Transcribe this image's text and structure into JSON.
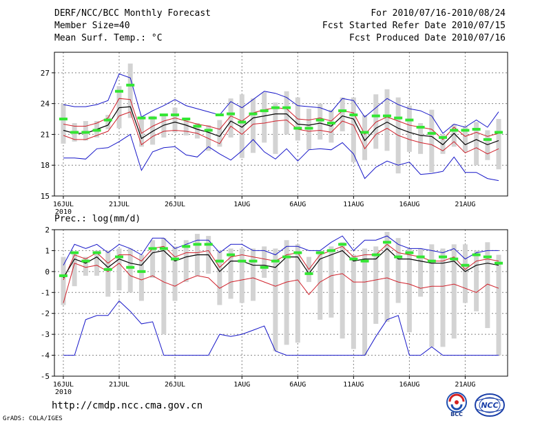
{
  "header": {
    "title": "DERF/NCC/BCC Monthly Forecast",
    "member_size": "Member Size=40",
    "variable_top": "Mean Surf. Temp.: °C",
    "forecast_period": "For 2010/07/16-2010/08/24",
    "start_date": "Fcst Started Refer Date 2010/07/15",
    "produced_date": "Fcst Produced Date 2010/07/16"
  },
  "footer": {
    "url": "http://cmdp.ncc.cma.gov.cn",
    "credit": "GrADS: COLA/IGES",
    "logo_bcc": "BCC",
    "logo_ncc": "NCC"
  },
  "colors": {
    "range": "#1515c8",
    "band": "#d0202a",
    "mean": "#000000",
    "bar": "#d3d3d3",
    "obs": "#33e633",
    "grid": "#808080"
  },
  "chart_data": [
    {
      "type": "line",
      "title": "Mean Surf. Temp.: °C",
      "x_tick_labels": [
        "16JUL\n2010",
        "21JUL",
        "26JUL",
        "1AUG",
        "6AUG",
        "11AUG",
        "16AUG",
        "21AUG"
      ],
      "x_tick_days": [
        0,
        5,
        10,
        16,
        21,
        26,
        31,
        36
      ],
      "xlim": [
        -0.8,
        39.8
      ],
      "ylim": [
        15,
        29
      ],
      "y_ticks": [
        15,
        18,
        21,
        24,
        27
      ],
      "days": [
        0,
        1,
        2,
        3,
        4,
        5,
        6,
        7,
        8,
        9,
        10,
        11,
        12,
        13,
        14,
        15,
        16,
        17,
        18,
        19,
        20,
        21,
        22,
        23,
        24,
        25,
        26,
        27,
        28,
        29,
        30,
        31,
        32,
        33,
        34,
        35,
        36,
        37,
        38,
        39
      ],
      "series": [
        {
          "name": "max",
          "values": [
            23.9,
            23.7,
            23.7,
            23.9,
            24.3,
            26.9,
            26.5,
            22.7,
            23.3,
            23.8,
            24.4,
            23.8,
            23.5,
            23.2,
            22.9,
            24.2,
            23.6,
            24.4,
            25.2,
            25.0,
            24.6,
            23.8,
            23.7,
            23.6,
            23.2,
            24.5,
            24.3,
            22.7,
            23.6,
            24.5,
            23.9,
            23.5,
            23.3,
            22.8,
            21.1,
            22.0,
            21.7,
            22.4,
            21.7,
            23.2
          ]
        },
        {
          "name": "upper",
          "values": [
            22.0,
            21.8,
            21.8,
            22.1,
            22.6,
            24.5,
            24.4,
            21.1,
            21.8,
            22.3,
            22.6,
            22.3,
            22.0,
            21.8,
            21.5,
            22.8,
            22.3,
            23.1,
            23.4,
            23.6,
            23.5,
            22.5,
            22.4,
            22.6,
            22.3,
            23.3,
            23.1,
            21.0,
            22.2,
            22.7,
            22.3,
            21.9,
            21.7,
            21.5,
            20.5,
            21.7,
            20.8,
            21.2,
            20.8,
            21.1
          ]
        },
        {
          "name": "mean",
          "values": [
            21.4,
            21.1,
            21.1,
            21.5,
            21.9,
            23.6,
            23.7,
            20.6,
            21.3,
            21.9,
            22.2,
            21.9,
            21.5,
            21.2,
            20.8,
            22.3,
            21.7,
            22.6,
            22.8,
            23.0,
            23.0,
            22.0,
            21.9,
            22.1,
            21.8,
            22.8,
            22.5,
            20.4,
            21.6,
            22.2,
            21.6,
            21.2,
            20.9,
            20.8,
            20.0,
            21.1,
            20.0,
            20.5,
            20.0,
            20.4
          ]
        },
        {
          "name": "lower",
          "values": [
            20.9,
            20.5,
            20.5,
            20.9,
            21.3,
            22.8,
            23.2,
            20.0,
            20.8,
            21.3,
            21.4,
            21.3,
            21.1,
            20.6,
            20.1,
            21.8,
            21.0,
            22.0,
            22.1,
            22.3,
            22.4,
            21.5,
            21.3,
            21.4,
            21.2,
            22.3,
            21.9,
            19.6,
            21.0,
            21.6,
            20.9,
            20.5,
            20.2,
            20.0,
            19.4,
            20.3,
            19.2,
            19.7,
            19.1,
            19.6
          ]
        },
        {
          "name": "min",
          "values": [
            18.7,
            18.7,
            18.6,
            19.6,
            19.7,
            20.3,
            21.0,
            17.5,
            19.3,
            19.7,
            19.8,
            19.0,
            18.8,
            19.8,
            19.1,
            18.5,
            19.4,
            20.5,
            19.3,
            18.6,
            19.6,
            18.4,
            19.5,
            19.6,
            19.5,
            20.2,
            19.1,
            16.7,
            17.8,
            18.4,
            18.0,
            18.3,
            17.1,
            17.2,
            17.4,
            18.8,
            17.3,
            17.3,
            16.7,
            16.5
          ]
        }
      ],
      "bars": {
        "low": [
          20.1,
          20.3,
          20.4,
          20.7,
          21.5,
          21.6,
          22.6,
          19.8,
          20.0,
          20.7,
          21.2,
          20.9,
          20.6,
          19.4,
          19.8,
          20.7,
          18.7,
          19.2,
          20.2,
          19.1,
          21.0,
          20.4,
          19.5,
          20.5,
          20.2,
          21.3,
          18.3,
          18.5,
          19.6,
          19.4,
          17.2,
          19.3,
          19.1,
          17.3,
          19.1,
          19.8,
          19.3,
          18.0,
          18.5,
          17.6
        ],
        "high": [
          24.0,
          22.1,
          22.3,
          22.3,
          22.9,
          25.7,
          27.9,
          22.6,
          22.8,
          23.0,
          23.6,
          22.6,
          22.1,
          21.9,
          22.4,
          24.5,
          24.9,
          24.5,
          25.1,
          24.1,
          25.2,
          24.6,
          23.5,
          24.0,
          23.4,
          24.6,
          24.6,
          22.9,
          24.9,
          25.4,
          24.6,
          23.8,
          22.1,
          23.4,
          21.0,
          22.0,
          21.8,
          22.2,
          21.4,
          22.5
        ]
      },
      "observed": [
        22.5,
        21.2,
        21.2,
        21.4,
        22.4,
        25.2,
        25.8,
        22.6,
        22.6,
        22.9,
        22.9,
        22.5,
        21.8,
        21.4,
        22.9,
        23.0,
        22.2,
        23.0,
        23.3,
        23.6,
        23.6,
        21.6,
        21.6,
        22.4,
        22.1,
        23.3,
        22.9,
        21.2,
        22.8,
        22.8,
        22.6,
        22.4,
        21.7,
        21.1,
        20.7,
        21.4,
        21.4,
        21.5,
        20.5,
        21.2
      ]
    },
    {
      "type": "line",
      "title": "Prec.: log(mm/d)",
      "x_tick_labels": [
        "16JUL\n2010",
        "21JUL",
        "26JUL",
        "1AUG",
        "6AUG",
        "11AUG",
        "16AUG",
        "21AUG"
      ],
      "x_tick_days": [
        0,
        5,
        10,
        16,
        21,
        26,
        31,
        36
      ],
      "xlim": [
        -0.8,
        39.8
      ],
      "ylim": [
        -5,
        2
      ],
      "y_ticks": [
        -5,
        -4,
        -3,
        -2,
        -1,
        0,
        1,
        2
      ],
      "days": [
        0,
        1,
        2,
        3,
        4,
        5,
        6,
        7,
        8,
        9,
        10,
        11,
        12,
        13,
        14,
        15,
        16,
        17,
        18,
        19,
        20,
        21,
        22,
        23,
        24,
        25,
        26,
        27,
        28,
        29,
        30,
        31,
        32,
        33,
        34,
        35,
        36,
        37,
        38,
        39
      ],
      "series": [
        {
          "name": "max",
          "values": [
            0.3,
            1.3,
            1.1,
            1.3,
            0.9,
            1.3,
            1.1,
            0.8,
            1.6,
            1.6,
            1.1,
            1.3,
            1.5,
            1.5,
            0.9,
            1.3,
            1.3,
            1.0,
            1.0,
            0.8,
            1.2,
            1.2,
            1.0,
            1.0,
            1.4,
            1.7,
            1.0,
            1.5,
            1.5,
            1.7,
            1.3,
            1.1,
            1.1,
            1.0,
            0.9,
            1.1,
            0.6,
            0.9,
            1.0,
            1.0
          ]
        },
        {
          "name": "upper",
          "values": [
            -0.4,
            0.8,
            0.6,
            0.9,
            0.4,
            0.8,
            0.8,
            0.5,
            1.1,
            1.2,
            0.7,
            0.9,
            0.9,
            1.0,
            0.2,
            0.7,
            0.8,
            0.7,
            0.6,
            0.5,
            0.8,
            0.9,
            0.1,
            0.8,
            1.0,
            1.2,
            0.7,
            0.8,
            0.8,
            1.3,
            0.9,
            0.8,
            0.7,
            0.5,
            0.5,
            0.7,
            0.1,
            0.5,
            0.6,
            0.5
          ]
        },
        {
          "name": "mean",
          "values": [
            -0.3,
            0.6,
            0.4,
            0.7,
            0.2,
            0.6,
            0.4,
            0.3,
            0.9,
            1.0,
            0.5,
            0.7,
            0.8,
            0.8,
            0.0,
            0.5,
            0.5,
            0.3,
            0.3,
            0.2,
            0.7,
            0.7,
            -0.1,
            0.6,
            0.8,
            1.0,
            0.5,
            0.6,
            0.6,
            1.1,
            0.6,
            0.6,
            0.5,
            0.4,
            0.4,
            0.5,
            0.0,
            0.3,
            0.4,
            0.3
          ]
        },
        {
          "name": "lower",
          "values": [
            -1.5,
            0.4,
            0.2,
            0.3,
            0.0,
            0.4,
            -0.2,
            -0.4,
            -0.2,
            -0.5,
            -0.7,
            -0.4,
            -0.2,
            -0.3,
            -0.8,
            -0.5,
            -0.4,
            -0.3,
            -0.5,
            -0.7,
            -0.5,
            -0.4,
            -1.1,
            -0.5,
            -0.2,
            -0.1,
            -0.5,
            -0.5,
            -0.4,
            -0.3,
            -0.5,
            -0.6,
            -0.8,
            -0.7,
            -0.7,
            -0.6,
            -0.8,
            -1.0,
            -0.6,
            -0.8
          ]
        },
        {
          "name": "min",
          "values": [
            -4.0,
            -4.0,
            -2.3,
            -2.1,
            -2.1,
            -1.4,
            -1.9,
            -2.5,
            -2.4,
            -4.0,
            -4.0,
            -4.0,
            -4.0,
            -4.0,
            -3.0,
            -3.1,
            -3.0,
            -2.8,
            -2.6,
            -3.8,
            -4.0,
            -4.0,
            -4.0,
            -4.0,
            -4.0,
            -4.0,
            -4.0,
            -4.0,
            -3.1,
            -2.3,
            -2.1,
            -4.0,
            -4.0,
            -3.6,
            -4.0,
            -4.0,
            -4.0,
            -4.0,
            -4.0,
            -4.0
          ]
        }
      ],
      "bars": {
        "low": [
          -1.6,
          -0.7,
          -0.2,
          -0.2,
          -1.2,
          -0.9,
          -1.0,
          -1.4,
          -0.3,
          -3.0,
          -1.4,
          -0.5,
          -0.2,
          -0.1,
          -1.6,
          -1.3,
          -1.5,
          -1.4,
          -0.3,
          -3.8,
          -3.5,
          -3.4,
          -0.5,
          -2.3,
          -2.2,
          -3.2,
          -3.7,
          -4.0,
          -2.5,
          -2.4,
          -1.5,
          -2.9,
          -1.2,
          -3.6,
          -3.6,
          -3.2,
          -1.5,
          -1.9,
          -2.7,
          -4.0
        ],
        "high": [
          0.7,
          0.9,
          0.7,
          1.0,
          1.0,
          1.1,
          1.1,
          0.8,
          1.5,
          1.6,
          1.2,
          1.5,
          1.8,
          1.7,
          1.0,
          1.1,
          1.1,
          1.1,
          1.2,
          1.1,
          1.5,
          1.3,
          0.7,
          1.0,
          1.2,
          1.4,
          0.8,
          1.1,
          1.2,
          1.9,
          1.6,
          1.1,
          1.1,
          1.3,
          1.1,
          1.3,
          1.3,
          1.0,
          1.4,
          0.8
        ]
      },
      "observed": [
        -0.2,
        0.9,
        0.5,
        0.9,
        0.1,
        0.7,
        0.2,
        0.0,
        1.1,
        1.1,
        0.6,
        1.2,
        1.3,
        1.3,
        0.5,
        0.8,
        0.5,
        0.5,
        0.2,
        0.5,
        0.7,
        0.9,
        -0.1,
        0.9,
        1.0,
        1.3,
        0.6,
        0.5,
        0.8,
        1.4,
        0.7,
        0.9,
        0.7,
        0.5,
        0.7,
        0.6,
        0.3,
        0.8,
        0.7,
        0.4
      ]
    }
  ]
}
